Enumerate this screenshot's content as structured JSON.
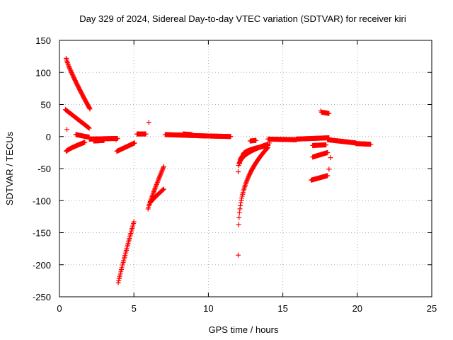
{
  "chart_data": {
    "type": "scatter",
    "title": "Day 329 of 2024, Sidereal Day-to-day VTEC variation (SDTVAR) for receiver kiri",
    "xlabel": "GPS time / hours",
    "ylabel": "SDTVAR / TECUs",
    "xlim": [
      0,
      25
    ],
    "ylim": [
      -250,
      150
    ],
    "xticks": [
      0,
      5,
      10,
      15,
      20,
      25
    ],
    "yticks": [
      150,
      100,
      50,
      0,
      -50,
      -100,
      -150,
      -200,
      -250
    ],
    "grid": true,
    "marker": "plus",
    "color": "#ff0000",
    "segments": [
      {
        "x0": 0.45,
        "x1": 2.05,
        "y0": 122,
        "y1": 43,
        "p": 0.85
      },
      {
        "x0": 0.4,
        "x1": 2.0,
        "y0": 42,
        "y1": 13,
        "p": 1.0
      },
      {
        "x0": 0.45,
        "x1": 1.7,
        "y0": -23,
        "y1": -9,
        "p": 0.8
      },
      {
        "x0": 1.1,
        "x1": 2.0,
        "y0": 3,
        "y1": -1,
        "p": 1.0
      },
      {
        "x0": 2.0,
        "x1": 3.9,
        "y0": -4,
        "y1": -3,
        "p": 1.0
      },
      {
        "x0": 2.3,
        "x1": 3.0,
        "y0": -7,
        "y1": -6,
        "p": 1.0
      },
      {
        "x0": 3.85,
        "x1": 5.05,
        "y0": -23,
        "y1": -10,
        "p": 1.0
      },
      {
        "x0": 3.95,
        "x1": 5.0,
        "y0": -228,
        "y1": -133,
        "p": 0.95
      },
      {
        "x0": 5.2,
        "x1": 5.8,
        "y0": 4,
        "y1": 4,
        "p": 1.0
      },
      {
        "x0": 5.95,
        "x1": 7.0,
        "y0": -113,
        "y1": -47,
        "p": 0.9
      },
      {
        "x0": 6.1,
        "x1": 7.0,
        "y0": -103,
        "y1": -82,
        "p": 0.9
      },
      {
        "x0": 7.1,
        "x1": 9.7,
        "y0": 3,
        "y1": 1,
        "p": 1.0
      },
      {
        "x0": 8.3,
        "x1": 8.9,
        "y0": 4,
        "y1": 3,
        "p": 1.0
      },
      {
        "x0": 9.7,
        "x1": 11.5,
        "y0": 1,
        "y1": 0,
        "p": 1.0
      },
      {
        "x0": 12.0,
        "x1": 14.0,
        "y0": -185,
        "y1": -17,
        "p": 0.3
      },
      {
        "x0": 12.0,
        "x1": 14.0,
        "y0": -55,
        "y1": -12,
        "p": 0.35
      },
      {
        "x0": 12.3,
        "x1": 14.0,
        "y0": -30,
        "y1": -14,
        "p": 0.45
      },
      {
        "x0": 12.1,
        "x1": 14.0,
        "y0": -42,
        "y1": -13,
        "p": 0.4
      },
      {
        "x0": 12.8,
        "x1": 13.2,
        "y0": -7,
        "y1": -6,
        "p": 1.0
      },
      {
        "x0": 14.0,
        "x1": 15.9,
        "y0": -4,
        "y1": -5,
        "p": 1.0
      },
      {
        "x0": 15.9,
        "x1": 18.1,
        "y0": -4,
        "y1": -2,
        "p": 1.0
      },
      {
        "x0": 16.9,
        "x1": 18.0,
        "y0": -68,
        "y1": -61,
        "p": 1.0
      },
      {
        "x0": 17.0,
        "x1": 18.0,
        "y0": -32,
        "y1": -25,
        "p": 1.0
      },
      {
        "x0": 17.0,
        "x1": 17.9,
        "y0": -14,
        "y1": -13,
        "p": 1.0
      },
      {
        "x0": 17.6,
        "x1": 18.1,
        "y0": 38,
        "y1": 36,
        "p": 1.0
      },
      {
        "x0": 18.0,
        "x1": 19.9,
        "y0": -5,
        "y1": -10,
        "p": 1.0
      },
      {
        "x0": 19.9,
        "x1": 20.9,
        "y0": -11,
        "y1": -12,
        "p": 1.0
      }
    ],
    "isolated": [
      [
        0.5,
        11
      ],
      [
        6.0,
        22
      ],
      [
        3.8,
        -5
      ],
      [
        14.1,
        -10
      ],
      [
        17.55,
        40
      ],
      [
        18.1,
        -51
      ],
      [
        18.2,
        -33
      ],
      [
        18.1,
        -4
      ]
    ]
  }
}
